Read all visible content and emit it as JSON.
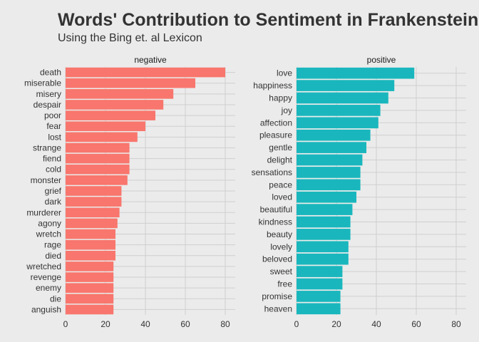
{
  "title": "Words' Contribution to Sentiment in Frankenstein",
  "subtitle": "Using the Bing et. al Lexicon",
  "colors": {
    "background": "#ebebeb",
    "grid": "#cfcfcf",
    "negative": "#f8766d",
    "positive": "#19b7bd"
  },
  "chart_data": {
    "type": "bar",
    "orientation": "horizontal",
    "grid": true,
    "legend": "none",
    "xlim": [
      0,
      85
    ],
    "x_ticks": [
      0,
      20,
      40,
      60,
      80
    ],
    "facets": [
      {
        "name": "negative",
        "color": "#f8766d",
        "categories": [
          "death",
          "miserable",
          "misery",
          "despair",
          "poor",
          "fear",
          "lost",
          "strange",
          "fiend",
          "cold",
          "monster",
          "grief",
          "dark",
          "murderer",
          "agony",
          "wretch",
          "rage",
          "died",
          "wretched",
          "revenge",
          "enemy",
          "die",
          "anguish"
        ],
        "values": [
          80,
          65,
          54,
          49,
          45,
          40,
          36,
          32,
          32,
          32,
          31,
          28,
          28,
          27,
          26,
          25,
          25,
          25,
          24,
          24,
          24,
          24,
          24
        ]
      },
      {
        "name": "positive",
        "color": "#19b7bd",
        "categories": [
          "love",
          "happiness",
          "happy",
          "joy",
          "affection",
          "pleasure",
          "gentle",
          "delight",
          "sensations",
          "peace",
          "loved",
          "beautiful",
          "kindness",
          "beauty",
          "lovely",
          "beloved",
          "sweet",
          "free",
          "promise",
          "heaven"
        ],
        "values": [
          59,
          49,
          46,
          42,
          41,
          37,
          35,
          33,
          32,
          32,
          30,
          28,
          27,
          27,
          26,
          26,
          23,
          23,
          22,
          22
        ]
      }
    ]
  }
}
